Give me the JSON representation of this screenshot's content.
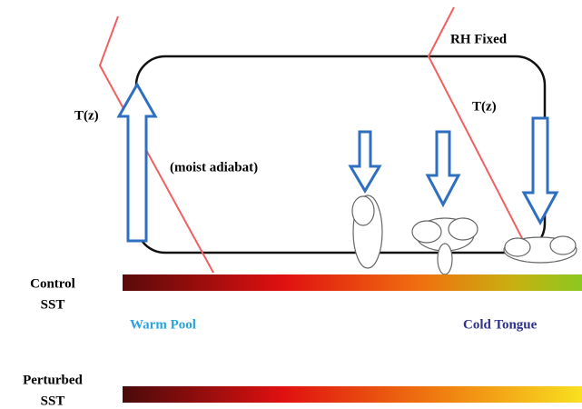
{
  "labels": {
    "t_z_left": "T(z)",
    "moist_adiabat": "(moist adiabat)",
    "rh_fixed": "RH Fixed",
    "t_z_right": "T(z)"
  },
  "sst_bars": [
    {
      "label": [
        "Control",
        "SST"
      ]
    },
    {
      "label": [
        "Perturbed",
        "SST"
      ]
    }
  ],
  "regions": {
    "warm_pool": "Warm Pool",
    "cold_tongue": "Cold Tongue"
  }
}
